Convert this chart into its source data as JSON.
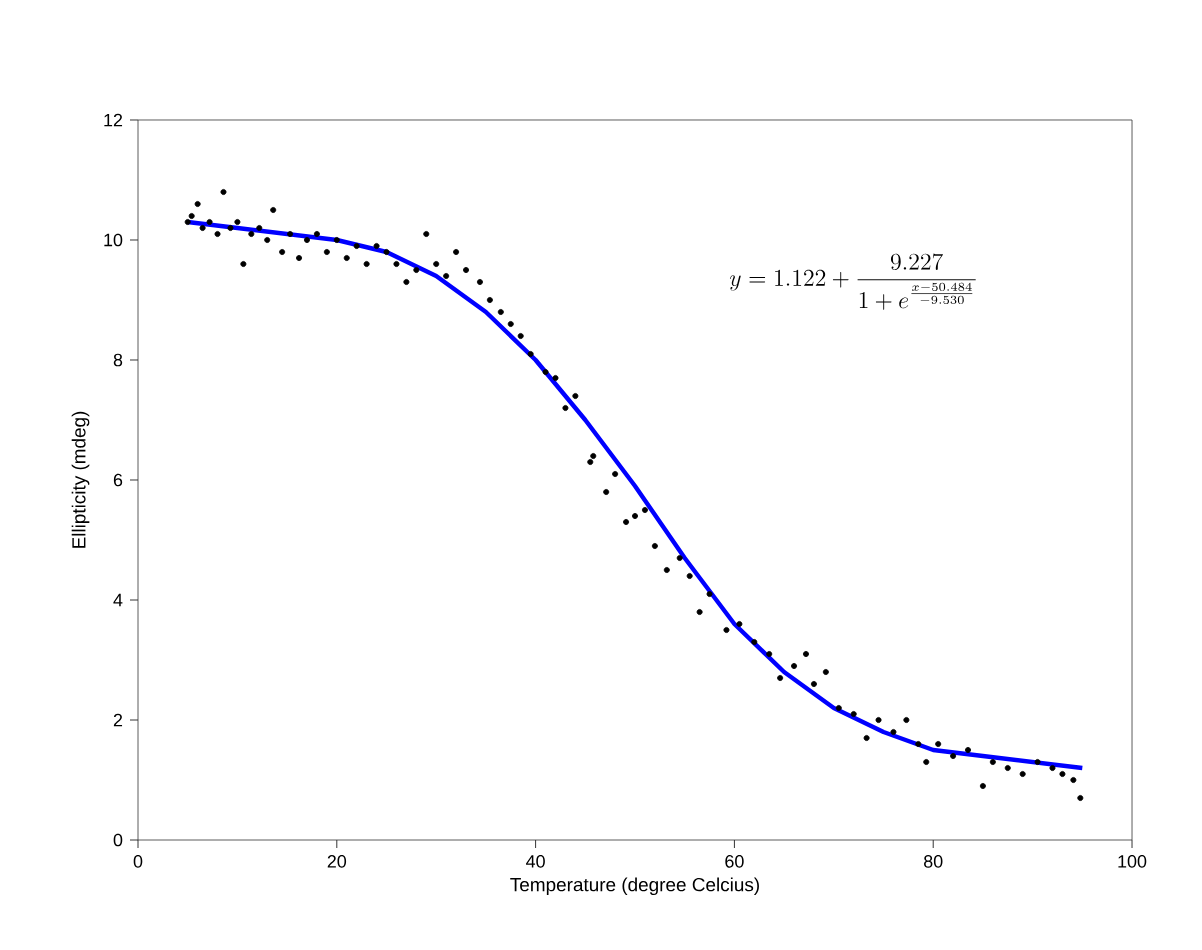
{
  "chart_data": {
    "type": "scatter",
    "xlabel": "Temperature (degree Celcius)",
    "ylabel": "Ellipticity (mdeg)",
    "xlim": [
      0,
      100
    ],
    "xticks": [
      0,
      20,
      40,
      60,
      80,
      100
    ],
    "ylim": [
      0,
      12
    ],
    "yticks": [
      0,
      2,
      4,
      6,
      8,
      10,
      12
    ],
    "annotations": [
      "y=1.122+ \\dfrac{9.227}{1+e^{\\frac{x-50.484}{-9.530}}}"
    ],
    "series": [
      {
        "color": "#000000",
        "marker": "circle",
        "x": [
          5.0,
          5.4,
          6.0,
          6.5,
          7.2,
          8.0,
          8.6,
          9.3,
          10.0,
          10.6,
          11.4,
          12.2,
          13.0,
          13.6,
          14.5,
          15.3,
          16.2,
          17.0,
          18.0,
          19.0,
          20.0,
          21.0,
          22.0,
          23.0,
          24.0,
          25.0,
          26.0,
          27.0,
          28.0,
          29.0,
          30.0,
          31.0,
          32.0,
          33.0,
          34.4,
          35.4,
          36.5,
          37.5,
          38.5,
          39.5,
          41.0,
          42.0,
          43.0,
          44.0,
          45.5,
          45.8,
          47.1,
          48.0,
          49.1,
          50.0,
          51.0,
          52.0,
          53.2,
          54.5,
          55.5,
          56.5,
          57.5,
          59.2,
          60.5,
          62.0,
          63.5,
          64.6,
          66.0,
          67.2,
          68.0,
          69.2,
          70.5,
          72.0,
          73.3,
          74.5,
          76.0,
          77.3,
          78.5,
          79.3,
          80.5,
          82.0,
          83.5,
          85.0,
          86.0,
          87.5,
          89.0,
          90.5,
          92.0,
          93.0,
          94.1,
          94.8
        ],
        "values": [
          10.3,
          10.4,
          10.6,
          10.2,
          10.3,
          10.1,
          10.8,
          10.2,
          10.3,
          9.6,
          10.1,
          10.2,
          10.0,
          10.5,
          9.8,
          10.1,
          9.7,
          10.0,
          10.1,
          9.8,
          10.0,
          9.7,
          9.9,
          9.6,
          9.9,
          9.8,
          9.6,
          9.3,
          9.5,
          10.1,
          9.6,
          9.4,
          9.8,
          9.5,
          9.3,
          9.0,
          8.8,
          8.6,
          8.4,
          8.1,
          7.8,
          7.7,
          7.2,
          7.4,
          6.3,
          6.4,
          5.8,
          6.1,
          5.3,
          5.4,
          5.5,
          4.9,
          4.5,
          4.7,
          4.4,
          3.8,
          4.1,
          3.5,
          3.6,
          3.3,
          3.1,
          2.7,
          2.9,
          3.1,
          2.6,
          2.8,
          2.2,
          2.1,
          1.7,
          2.0,
          1.8,
          2.0,
          1.6,
          1.3,
          1.6,
          1.4,
          1.5,
          0.9,
          1.3,
          1.2,
          1.1,
          1.3,
          1.2,
          1.1,
          1.0,
          0.7
        ]
      },
      {
        "type": "line",
        "color": "#0000ff",
        "marker": "none",
        "x": [
          5,
          10,
          15,
          20,
          25,
          30,
          35,
          40,
          45,
          50,
          55,
          60,
          65,
          70,
          75,
          80,
          85,
          90,
          95
        ],
        "values": [
          10.3,
          10.2,
          10.1,
          10.0,
          9.8,
          9.4,
          8.8,
          8.0,
          7.0,
          5.9,
          4.7,
          3.6,
          2.8,
          2.2,
          1.8,
          1.5,
          1.4,
          1.3,
          1.2
        ]
      }
    ]
  }
}
